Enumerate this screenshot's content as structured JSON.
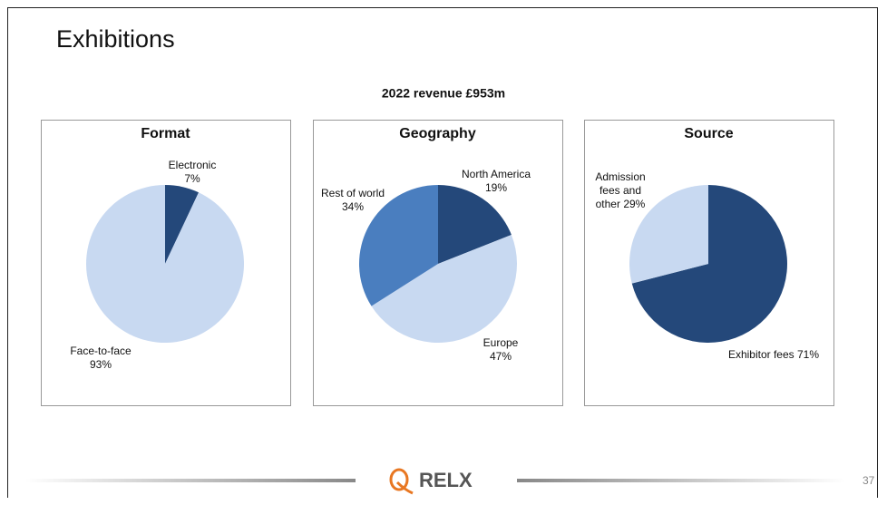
{
  "title": "Exhibitions",
  "subtitle": "2022 revenue £953m",
  "logo": "RELX",
  "page_number": "37",
  "chart_data": [
    {
      "type": "pie",
      "title": "Format",
      "categories": [
        "Electronic",
        "Face-to-face"
      ],
      "values": [
        7,
        93
      ],
      "value_labels": [
        "7%",
        "93%"
      ],
      "colors": [
        "#24487a",
        "#c8d9f1"
      ]
    },
    {
      "type": "pie",
      "title": "Geography",
      "categories": [
        "North America",
        "Europe",
        "Rest of world"
      ],
      "values": [
        19,
        47,
        34
      ],
      "value_labels": [
        "19%",
        "47%",
        "34%"
      ],
      "colors": [
        "#24487a",
        "#c8d9f1",
        "#4a7ebf"
      ]
    },
    {
      "type": "pie",
      "title": "Source",
      "categories": [
        "Exhibitor fees",
        "Admission fees and other"
      ],
      "values": [
        71,
        29
      ],
      "value_labels": [
        "71%",
        "29%"
      ],
      "colors": [
        "#24487a",
        "#c8d9f1"
      ]
    }
  ]
}
